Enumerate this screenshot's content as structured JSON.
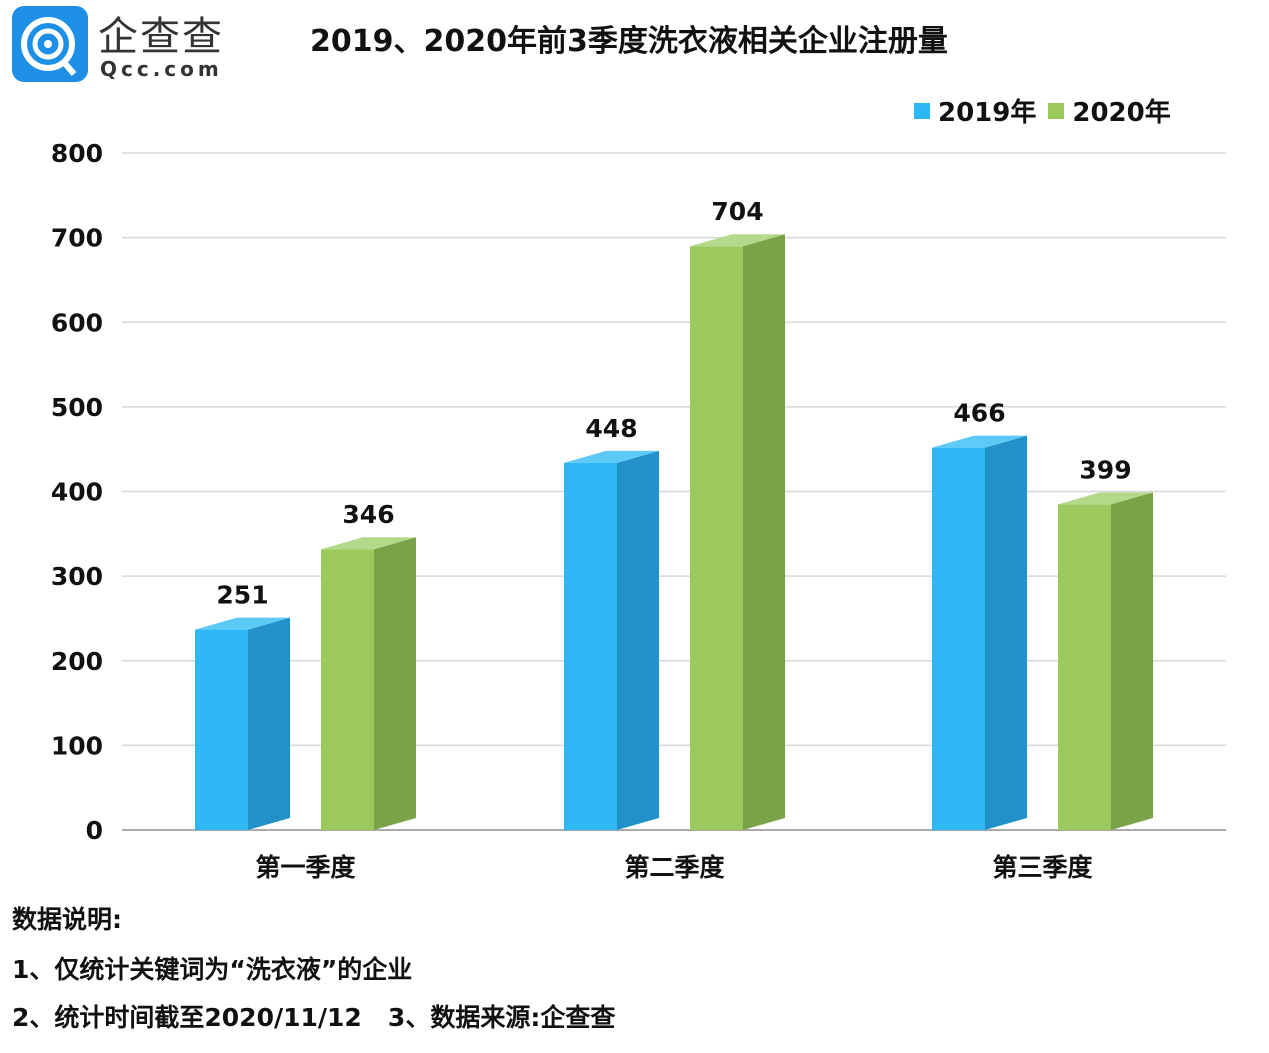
{
  "logo": {
    "brand_cn": "企查查",
    "brand_en": "Qcc.com"
  },
  "chart_data": {
    "type": "bar",
    "title": "2019、2020年前3季度洗衣液相关企业注册量",
    "categories": [
      "第一季度",
      "第二季度",
      "第三季度"
    ],
    "series": [
      {
        "name": "2019年",
        "values": [
          251,
          448,
          466
        ],
        "color": "#2db8f5"
      },
      {
        "name": "2020年",
        "values": [
          346,
          704,
          399
        ],
        "color": "#9bc95c"
      }
    ],
    "ylim": [
      0,
      800
    ],
    "yticks": [
      0,
      100,
      200,
      300,
      400,
      500,
      600,
      700,
      800
    ],
    "grid": true,
    "legend_position": "top-right",
    "style": "3d-column"
  },
  "notes": {
    "heading": "数据说明:",
    "line1": "1、仅统计关键词为“洗衣液”的企业",
    "line2": "2、统计时间截至2020/11/12   3、数据来源:企查查"
  }
}
